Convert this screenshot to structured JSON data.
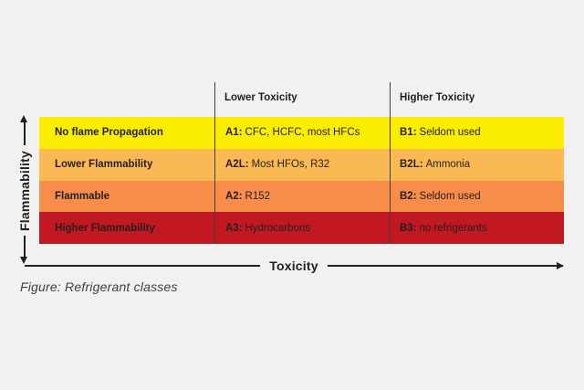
{
  "figure": {
    "caption": "Figure: Refrigerant classes",
    "x_axis_label": "Toxicity",
    "y_axis_label": "Flammability"
  },
  "matrix": {
    "column_headers": {
      "lower": "Lower Toxicity",
      "higher": "Higher Toxicity"
    },
    "rows": [
      {
        "label": "No flame Propagation",
        "lower_code": "A1:",
        "lower_text": "CFC, HCFC, most HFCs",
        "higher_code": "B1:",
        "higher_text": "Seldom used",
        "color": "#FAED00"
      },
      {
        "label": "Lower Flammability",
        "lower_code": "A2L:",
        "lower_text": "Most HFOs, R32",
        "higher_code": "B2L:",
        "higher_text": "Ammonia",
        "color": "#FBB954"
      },
      {
        "label": "Flammable",
        "lower_code": "A2:",
        "lower_text": "R152",
        "higher_code": "B2:",
        "higher_text": "Seldom used",
        "color": "#F68E4A"
      },
      {
        "label": "Higher Flammability",
        "lower_code": "A3:",
        "lower_text": "Hydrocarbons",
        "higher_code": "B3:",
        "higher_text": "no refrigerants",
        "color": "#C21822"
      }
    ]
  },
  "colors": {
    "background": "#F1F1F2",
    "axis": "#231F20",
    "separator": "#3F3F3F",
    "caption_text": "#3F3F41",
    "row_no_flame_propagation": "#FAED00",
    "row_lower_flammability": "#FBB954",
    "row_flammable": "#F68E4A",
    "row_higher_flammability": "#C21822"
  },
  "chart_data": {
    "type": "table",
    "title": "Figure: Refrigerant classes",
    "xlabel": "Toxicity",
    "ylabel": "Flammability",
    "columns": [
      "",
      "Lower Toxicity",
      "Higher Toxicity"
    ],
    "rows": [
      [
        "No flame Propagation",
        "A1: CFC, HCFC, most HFCs",
        "B1: Seldom used"
      ],
      [
        "Lower Flammability",
        "A2L: Most HFOs, R32",
        "B2L: Ammonia"
      ],
      [
        "Flammable",
        "A2: R152",
        "B2: Seldom used"
      ],
      [
        "Higher Flammability",
        "A3: Hydrocarbons",
        "B3: no refrigerants"
      ]
    ],
    "layout": {
      "y_axis_arrow": "double-headed, label rotated 90deg",
      "x_axis_arrow": "right arrowhead only, label breaks the line",
      "row_order_top_to_bottom": [
        "A1/B1",
        "A2L/B2L",
        "A2/B2",
        "A3/B3"
      ]
    }
  }
}
